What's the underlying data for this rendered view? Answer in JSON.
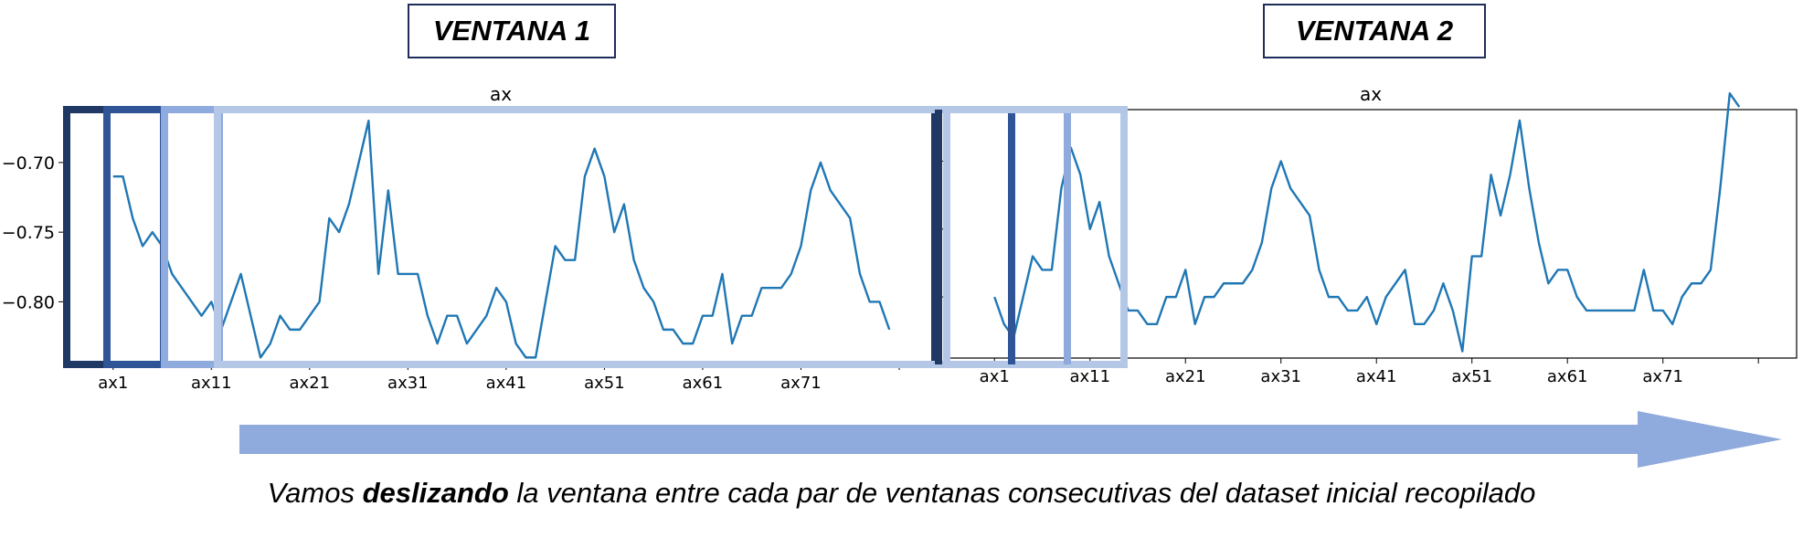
{
  "window_labels": [
    "VENTANA 1",
    "VENTANA 2"
  ],
  "caption": {
    "pre": "Vamos ",
    "bold": "deslizando",
    "post": " la ventana entre cada par de ventanas consecutivas del dataset inicial recopilado"
  },
  "colors": {
    "line": "#1f77b4",
    "window_dark": "#1f3864",
    "window_mid": "#2f5597",
    "window_light": "#8faadc",
    "window_lightest": "#b4c7e7",
    "arrow": "#8faadc"
  },
  "chart_data": [
    {
      "type": "line",
      "title": "ax",
      "xlabel": "",
      "ylabel": "",
      "x_tick_labels": [
        "ax1",
        "ax11",
        "ax21",
        "ax31",
        "ax41",
        "ax51",
        "ax61",
        "ax71"
      ],
      "y_ticks": [
        -0.7,
        -0.75,
        -0.8
      ],
      "y_tick_labels": [
        "−0.70",
        "−0.75",
        "−0.80"
      ],
      "ylim": [
        -0.845,
        -0.662
      ],
      "xlim": [
        -5,
        84
      ],
      "grid": false,
      "series": [
        {
          "values": [
            -0.71,
            -0.71,
            -0.74,
            -0.76,
            -0.75,
            -0.76,
            -0.78,
            -0.79,
            -0.8,
            -0.81,
            -0.8,
            -0.82,
            -0.8,
            -0.78,
            -0.81,
            -0.84,
            -0.83,
            -0.81,
            -0.82,
            -0.82,
            -0.81,
            -0.8,
            -0.74,
            -0.75,
            -0.73,
            -0.7,
            -0.67,
            -0.78,
            -0.72,
            -0.78,
            -0.78,
            -0.78,
            -0.81,
            -0.83,
            -0.81,
            -0.81,
            -0.83,
            -0.82,
            -0.81,
            -0.79,
            -0.8,
            -0.83,
            -0.84,
            -0.84,
            -0.8,
            -0.76,
            -0.77,
            -0.77,
            -0.71,
            -0.69,
            -0.71,
            -0.75,
            -0.73,
            -0.77,
            -0.79,
            -0.8,
            -0.82,
            -0.82,
            -0.83,
            -0.83,
            -0.81,
            -0.81,
            -0.78,
            -0.83,
            -0.81,
            -0.81,
            -0.79,
            -0.79,
            -0.79,
            -0.78,
            -0.76,
            -0.72,
            -0.7,
            -0.72,
            -0.73,
            -0.74,
            -0.78,
            -0.8,
            -0.8,
            -0.82
          ]
        }
      ]
    },
    {
      "type": "line",
      "title": "ax",
      "xlabel": "",
      "ylabel": "",
      "x_tick_labels": [
        "ax1",
        "ax11",
        "ax21",
        "ax31",
        "ax41",
        "ax51",
        "ax61",
        "ax71"
      ],
      "y_ticks": [],
      "y_tick_labels": [],
      "ylim": [
        -0.845,
        -0.662
      ],
      "xlim": [
        -5,
        84
      ],
      "grid": false,
      "series": [
        {
          "values": [
            -0.8,
            -0.82,
            -0.83,
            -0.8,
            -0.77,
            -0.78,
            -0.78,
            -0.72,
            -0.69,
            -0.71,
            -0.75,
            -0.73,
            -0.77,
            -0.79,
            -0.81,
            -0.81,
            -0.82,
            -0.82,
            -0.8,
            -0.8,
            -0.78,
            -0.82,
            -0.8,
            -0.8,
            -0.79,
            -0.79,
            -0.79,
            -0.78,
            -0.76,
            -0.72,
            -0.7,
            -0.72,
            -0.73,
            -0.74,
            -0.78,
            -0.8,
            -0.8,
            -0.81,
            -0.81,
            -0.8,
            -0.82,
            -0.8,
            -0.79,
            -0.78,
            -0.82,
            -0.82,
            -0.81,
            -0.79,
            -0.81,
            -0.84,
            -0.77,
            -0.77,
            -0.71,
            -0.74,
            -0.71,
            -0.67,
            -0.72,
            -0.76,
            -0.79,
            -0.78,
            -0.78,
            -0.8,
            -0.81,
            -0.81,
            -0.81,
            -0.81,
            -0.81,
            -0.81,
            -0.78,
            -0.81,
            -0.81,
            -0.82,
            -0.8,
            -0.79,
            -0.79,
            -0.78,
            -0.72,
            -0.65,
            -0.66
          ]
        }
      ]
    }
  ]
}
